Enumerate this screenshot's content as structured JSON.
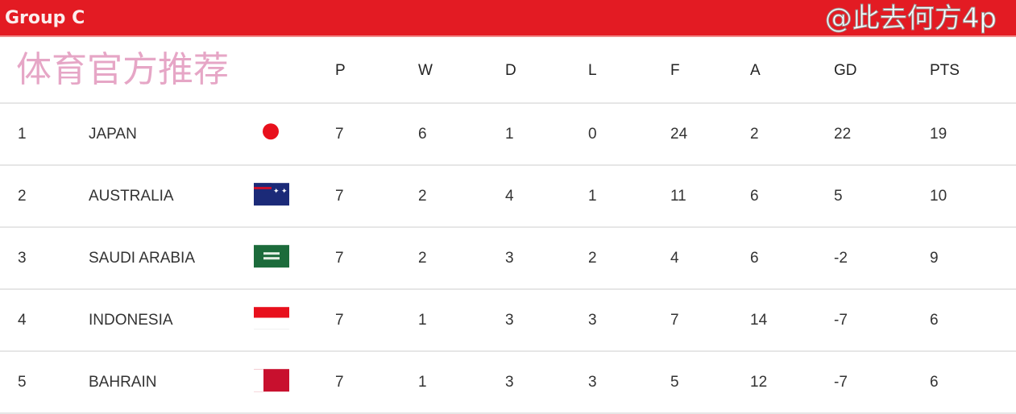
{
  "title": "Group C",
  "colors": {
    "header_red": "#e31b23"
  },
  "columns": [
    "P",
    "W",
    "D",
    "L",
    "F",
    "A",
    "GD",
    "PTS"
  ],
  "rows": [
    {
      "rank": "1",
      "team": "JAPAN",
      "flag": "japan-flag",
      "P": "7",
      "W": "6",
      "D": "1",
      "L": "0",
      "F": "24",
      "A": "2",
      "GD": "22",
      "PTS": "19"
    },
    {
      "rank": "2",
      "team": "AUSTRALIA",
      "flag": "australia-flag",
      "P": "7",
      "W": "2",
      "D": "4",
      "L": "1",
      "F": "11",
      "A": "6",
      "GD": "5",
      "PTS": "10"
    },
    {
      "rank": "3",
      "team": "SAUDI ARABIA",
      "flag": "saudi-arabia-flag",
      "P": "7",
      "W": "2",
      "D": "3",
      "L": "2",
      "F": "4",
      "A": "6",
      "GD": "-2",
      "PTS": "9"
    },
    {
      "rank": "4",
      "team": "INDONESIA",
      "flag": "indonesia-flag",
      "P": "7",
      "W": "1",
      "D": "3",
      "L": "3",
      "F": "7",
      "A": "14",
      "GD": "-7",
      "PTS": "6"
    },
    {
      "rank": "5",
      "team": "BAHRAIN",
      "flag": "bahrain-flag",
      "P": "7",
      "W": "1",
      "D": "3",
      "L": "3",
      "F": "5",
      "A": "12",
      "GD": "-7",
      "PTS": "6"
    }
  ],
  "watermarks": {
    "left": "体育官方推荐",
    "right": "@此去何方4p"
  }
}
